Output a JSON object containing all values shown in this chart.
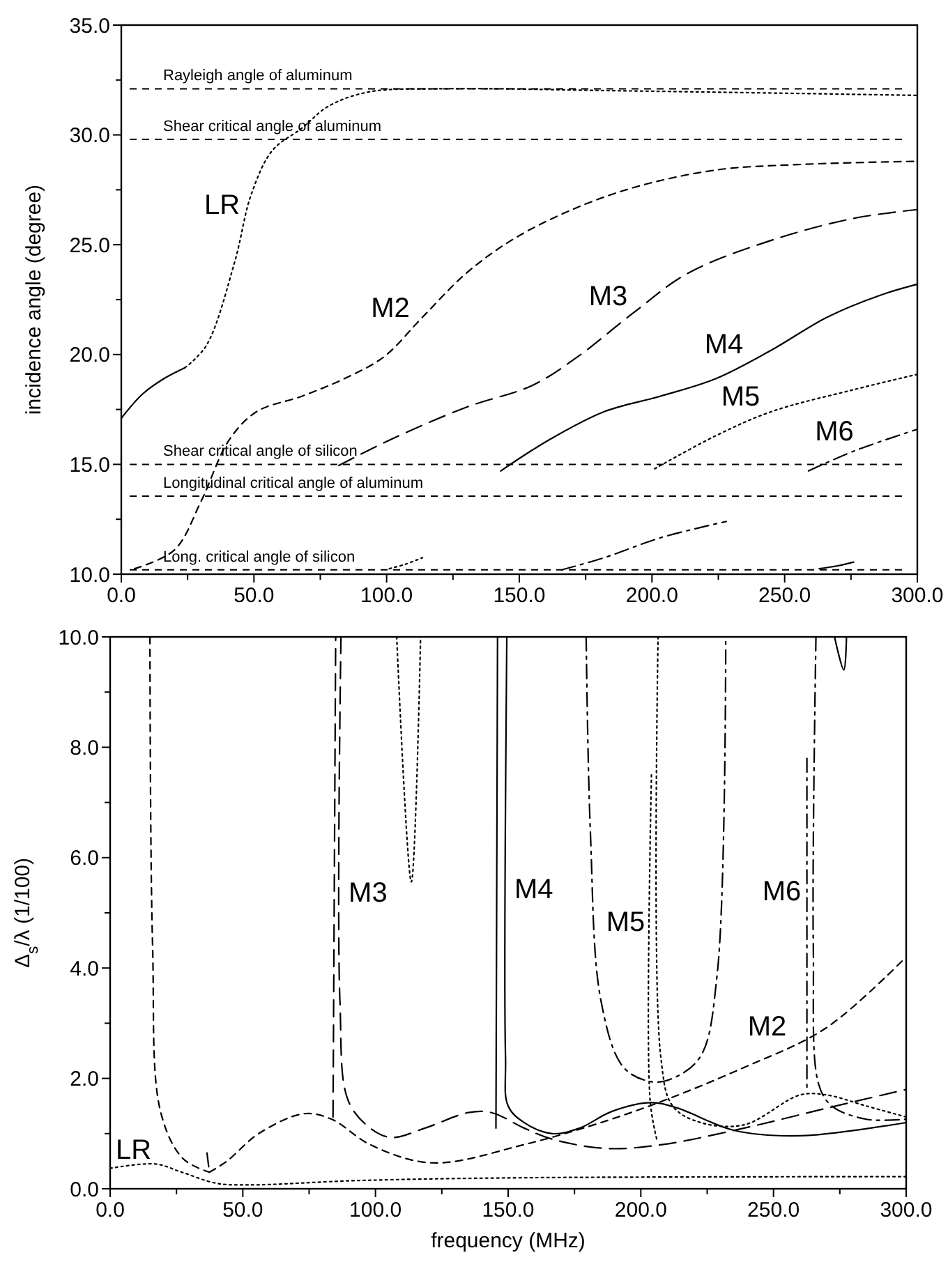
{
  "chart_data": [
    {
      "type": "line",
      "ylabel": "incidence angle (degree)",
      "xlim": [
        0,
        300
      ],
      "ylim": [
        10,
        35
      ],
      "xticks": [
        {
          "value": 0,
          "label": "0.0"
        },
        {
          "value": 25,
          "label": null
        },
        {
          "value": 50,
          "label": "50.0"
        },
        {
          "value": 75,
          "label": null
        },
        {
          "value": 100,
          "label": "100.0"
        },
        {
          "value": 125,
          "label": null
        },
        {
          "value": 150,
          "label": "150.0"
        },
        {
          "value": 175,
          "label": null
        },
        {
          "value": 200,
          "label": "200.0"
        },
        {
          "value": 225,
          "label": null
        },
        {
          "value": 250,
          "label": "250.0"
        },
        {
          "value": 275,
          "label": null
        },
        {
          "value": 300,
          "label": "300.0"
        }
      ],
      "yticks": [
        {
          "value": 10,
          "label": "10.0"
        },
        {
          "value": 12.5,
          "label": null
        },
        {
          "value": 15,
          "label": "15.0"
        },
        {
          "value": 17.5,
          "label": null
        },
        {
          "value": 20,
          "label": "20.0"
        },
        {
          "value": 22.5,
          "label": null
        },
        {
          "value": 25,
          "label": "25.0"
        },
        {
          "value": 27.5,
          "label": null
        },
        {
          "value": 30,
          "label": "30.0"
        },
        {
          "value": 32.5,
          "label": null
        },
        {
          "value": 35,
          "label": "35.0"
        }
      ],
      "grid": false,
      "series": [
        {
          "color": "#000000",
          "line_style": "solid",
          "x": [
            0,
            8,
            16,
            24
          ],
          "values": [
            17.1,
            18.2,
            18.9,
            19.4
          ]
        },
        {
          "name": "LR",
          "color": "#000000",
          "line_style": "dotted",
          "x": [
            24,
            32,
            42.7,
            49,
            57,
            68,
            78,
            93,
            120,
            193,
            300
          ],
          "values": [
            19.4,
            20.4,
            24.2,
            27.3,
            29.3,
            30.3,
            31.3,
            31.95,
            32.1,
            32.0,
            31.8
          ]
        },
        {
          "name": "M2",
          "color": "#000000",
          "line_style": "dashed",
          "x": [
            5,
            20,
            30,
            40.6,
            51,
            68,
            84,
            99,
            113.5,
            130,
            147,
            168,
            193,
            224,
            255,
            300
          ],
          "values": [
            10.25,
            11.1,
            13.3,
            16.1,
            17.4,
            18.1,
            18.9,
            19.9,
            21.7,
            23.7,
            25.2,
            26.5,
            27.6,
            28.4,
            28.65,
            28.8
          ]
        },
        {
          "name": "M3",
          "color": "#000000",
          "line_style": "longdash",
          "x": [
            82,
            101,
            130,
            155,
            172,
            193,
            213.5,
            245,
            276,
            300
          ],
          "values": [
            14.95,
            16.1,
            17.6,
            18.6,
            19.9,
            21.9,
            23.7,
            25.2,
            26.2,
            26.6
          ]
        },
        {
          "name": "M4",
          "color": "#000000",
          "line_style": "solid",
          "x": [
            143,
            161,
            182,
            203,
            224,
            245,
            266,
            286,
            300
          ],
          "values": [
            14.7,
            16.1,
            17.4,
            18.1,
            18.9,
            20.2,
            21.7,
            22.7,
            23.2
          ]
        },
        {
          "name": "M5",
          "color": "#000000",
          "line_style": "dotted",
          "x": [
            201,
            224,
            245,
            276,
            300
          ],
          "values": [
            14.8,
            16.3,
            17.4,
            18.4,
            19.1
          ]
        },
        {
          "color": "#000000",
          "line_style": "dotted",
          "x": [
            101,
            107,
            113.5
          ],
          "values": [
            10.25,
            10.45,
            10.75
          ]
        },
        {
          "name": "M6",
          "color": "#000000",
          "line_style": "dashdot",
          "x": [
            259,
            276,
            300
          ],
          "values": [
            14.7,
            15.6,
            16.6
          ]
        },
        {
          "color": "#000000",
          "line_style": "dashdot",
          "x": [
            166,
            182,
            203,
            228
          ],
          "values": [
            10.2,
            10.75,
            11.65,
            12.4
          ]
        },
        {
          "color": "#000000",
          "line_style": "solid",
          "x": [
            263,
            270,
            276
          ],
          "values": [
            10.25,
            10.38,
            10.55
          ]
        }
      ],
      "ref_lines": [
        {
          "axis": "y",
          "value": 32.1,
          "label": "Rayleigh angle of aluminum",
          "color": "#000000",
          "line_style": "dashed"
        },
        {
          "axis": "y",
          "value": 29.8,
          "label": "Shear critical angle of aluminum",
          "color": "#000000",
          "line_style": "dashed"
        },
        {
          "axis": "y",
          "value": 15.0,
          "label": "Shear critical angle of silicon",
          "color": "#000000",
          "line_style": "dashed"
        },
        {
          "axis": "y",
          "value": 13.55,
          "label": "Longitudinal critical angle of aluminum",
          "color": "#000000",
          "line_style": "dashed"
        },
        {
          "axis": "y",
          "value": 10.2,
          "label": "Long. critical angle of silicon",
          "color": "#000000",
          "line_style": "dashed"
        }
      ],
      "legend": false
    },
    {
      "type": "line",
      "xlabel": "frequency (MHz)",
      "ylabel": "Δ$_{s}$/λ  (1/100)",
      "xlim": [
        0,
        300
      ],
      "ylim": [
        0,
        10
      ],
      "xticks": [
        {
          "value": 0,
          "label": "0.0"
        },
        {
          "value": 25,
          "label": null
        },
        {
          "value": 50,
          "label": "50.0"
        },
        {
          "value": 75,
          "label": null
        },
        {
          "value": 100,
          "label": "100.0"
        },
        {
          "value": 125,
          "label": null
        },
        {
          "value": 150,
          "label": "150.0"
        },
        {
          "value": 175,
          "label": null
        },
        {
          "value": 200,
          "label": "200.0"
        },
        {
          "value": 225,
          "label": null
        },
        {
          "value": 250,
          "label": "250.0"
        },
        {
          "value": 275,
          "label": null
        },
        {
          "value": 300,
          "label": "300.0"
        }
      ],
      "yticks": [
        {
          "value": 0,
          "label": "0.0"
        },
        {
          "value": 1,
          "label": null
        },
        {
          "value": 2,
          "label": "2.0"
        },
        {
          "value": 3,
          "label": null
        },
        {
          "value": 4,
          "label": "4.0"
        },
        {
          "value": 5,
          "label": null
        },
        {
          "value": 6,
          "label": "6.0"
        },
        {
          "value": 7,
          "label": null
        },
        {
          "value": 8,
          "label": "8.0"
        },
        {
          "value": 9,
          "label": null
        },
        {
          "value": 10,
          "label": "10.0"
        }
      ],
      "grid": false,
      "series": [
        {
          "name": "LR",
          "color": "#000000",
          "line_style": "dotted",
          "x": [
            0,
            17,
            27,
            40,
            52,
            94,
            156,
            300
          ],
          "values": [
            0.37,
            0.45,
            0.3,
            0.1,
            0.07,
            0.15,
            0.2,
            0.22
          ]
        },
        {
          "color": "#000000",
          "line_style": "dotted",
          "x": [
            108,
            113.5,
            117
          ],
          "values": [
            10,
            5.56,
            10
          ]
        },
        {
          "color": "#000000",
          "line_style": "dashed",
          "x": [
            15,
            16,
            19,
            27.4,
            37.4
          ],
          "values": [
            10,
            4.4,
            1.4,
            0.55,
            0.3
          ]
        },
        {
          "color": "#000000",
          "line_style": "dashdot",
          "x": [
            36.5,
            37.4
          ],
          "values": [
            0.65,
            0.3
          ]
        },
        {
          "name": "M2",
          "color": "#000000",
          "line_style": "dashed",
          "x": [
            37.4,
            44,
            56,
            73,
            83.5,
            98,
            121,
            156,
            198,
            239,
            270,
            300
          ],
          "values": [
            0.3,
            0.5,
            1.0,
            1.36,
            1.26,
            0.8,
            0.47,
            0.8,
            1.41,
            2.2,
            2.92,
            4.2
          ]
        },
        {
          "color": "#000000",
          "line_style": "longdash",
          "x": [
            84,
            85
          ],
          "values": [
            1.3,
            10
          ]
        },
        {
          "name": "M3",
          "color": "#000000",
          "line_style": "longdash",
          "x": [
            87,
            86.6,
            89.7,
            98,
            106,
            118.7,
            135,
            143.7,
            156,
            166.5,
            187,
            208,
            239,
            270,
            300
          ],
          "values": [
            10,
            3.4,
            1.6,
            1.1,
            0.93,
            1.1,
            1.38,
            1.38,
            1.1,
            0.9,
            0.73,
            0.8,
            1.1,
            1.46,
            1.8
          ]
        },
        {
          "color": "#000000",
          "line_style": "solid",
          "x": [
            145.4,
            146
          ],
          "values": [
            1.1,
            10
          ]
        },
        {
          "name": "M4",
          "color": "#000000",
          "line_style": "solid",
          "x": [
            149.5,
            149,
            150,
            156,
            166.5,
            177,
            189,
            204,
            214,
            235,
            260,
            300
          ],
          "values": [
            10,
            2.4,
            1.5,
            1.2,
            1.0,
            1.1,
            1.4,
            1.56,
            1.46,
            1.06,
            0.96,
            1.2
          ]
        },
        {
          "color": "#000000",
          "line_style": "solid",
          "x": [
            273,
            276.5,
            277.5
          ],
          "values": [
            10,
            9.4,
            10
          ]
        },
        {
          "name": "M5",
          "color": "#000000",
          "line_style": "dotted",
          "x": [
            204,
            203.5,
            206
          ],
          "values": [
            7.5,
            1.6,
            0.9
          ]
        },
        {
          "color": "#000000",
          "line_style": "dotted",
          "x": [
            206.5,
            207.5,
            212,
            222.5,
            239,
            260,
            270,
            285,
            300
          ],
          "values": [
            10,
            2.4,
            1.5,
            1.2,
            1.16,
            1.7,
            1.7,
            1.5,
            1.3
          ]
        },
        {
          "color": "#000000",
          "line_style": "dashdot",
          "x": [
            179.4,
            181,
            185,
            193.5,
            204,
            212,
            222.5,
            228.8,
            232
          ],
          "values": [
            10,
            6.45,
            3.4,
            2.2,
            1.94,
            2.0,
            2.4,
            3.9,
            10
          ]
        },
        {
          "name": "M6",
          "color": "#000000",
          "line_style": "dashdot",
          "x": [
            262.6,
            262.6
          ],
          "values": [
            7.8,
            1.8
          ]
        },
        {
          "color": "#000000",
          "line_style": "dashdot",
          "x": [
            266,
            265,
            267,
            272,
            285,
            300
          ],
          "values": [
            10,
            4.4,
            1.9,
            1.5,
            1.26,
            1.26
          ]
        }
      ],
      "legend": false
    }
  ]
}
